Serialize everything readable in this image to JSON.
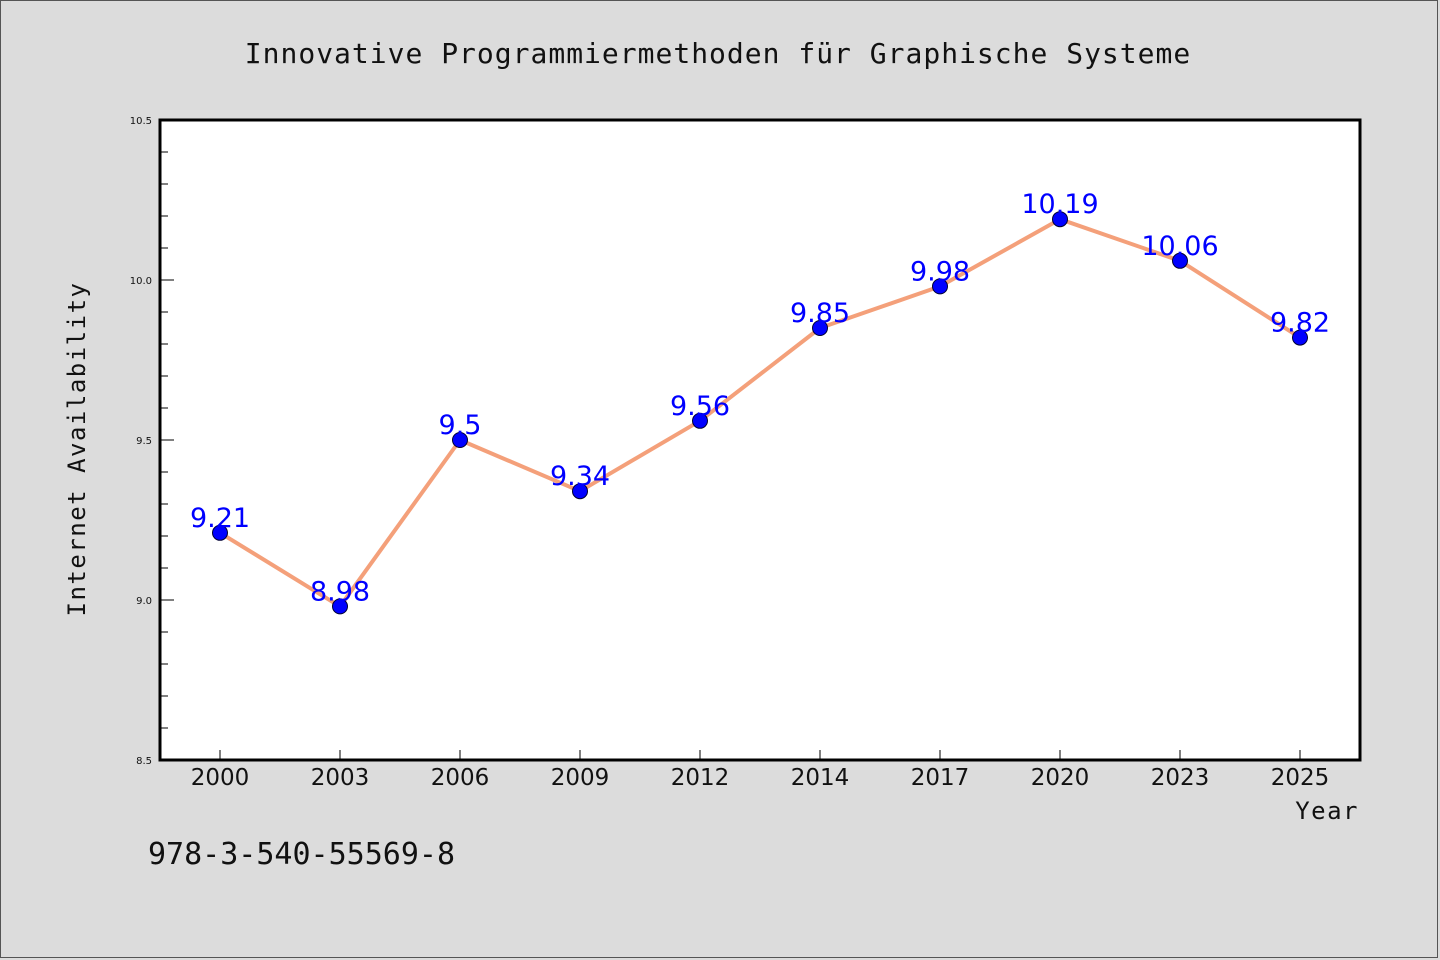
{
  "chart_data": {
    "type": "line",
    "title": "Innovative Programmiermethoden für Graphische Systeme",
    "xlabel": "Year",
    "ylabel": "Internet Availability",
    "categories": [
      "2000",
      "2003",
      "2006",
      "2009",
      "2012",
      "2014",
      "2017",
      "2020",
      "2023",
      "2025"
    ],
    "series": [
      {
        "values": [
          9.21,
          8.98,
          9.5,
          9.34,
          9.56,
          9.85,
          9.98,
          10.19,
          10.06,
          9.82
        ],
        "data_labels": [
          "9.21",
          "8.98",
          "9.5",
          "9.34",
          "9.56",
          "9.85",
          "9.98",
          "10.19",
          "10.06",
          "9.82"
        ],
        "line_color": "#f4a07a",
        "marker_color": "#0000ff"
      }
    ],
    "ylim": [
      8.5,
      10.5
    ],
    "yticks": [
      "8.5",
      "9.0",
      "9.5",
      "10.0",
      "10.5"
    ],
    "grid": false,
    "legend": "none"
  },
  "footer_text": "978-3-540-55569-8",
  "colors": {
    "background": "#dcdcdc",
    "plot_background": "#ffffff",
    "data_label": "#0000ff"
  }
}
